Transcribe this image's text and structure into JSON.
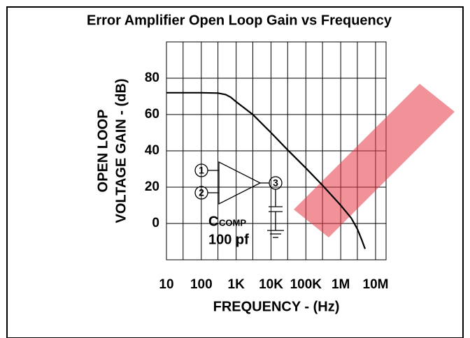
{
  "chart_data": {
    "type": "line",
    "title": "Error Amplifier Open Loop Gain vs Frequency",
    "y_label_lines": [
      "OPEN LOOP",
      "VOLTAGE GAIN  -  (dB)"
    ],
    "x_label": "FREQUENCY  -  (Hz)",
    "x_scale": "log",
    "xlim": [
      10,
      20000000
    ],
    "ylim": [
      -20,
      100
    ],
    "xticks": [
      10,
      100,
      {
        "value": 1000,
        "label": "1K"
      },
      {
        "value": 10000,
        "label": "10K"
      },
      {
        "value": 100000,
        "label": "100K"
      },
      {
        "value": 1000000,
        "label": "1M"
      },
      {
        "value": 10000000,
        "label": "10M"
      }
    ],
    "x_minor_grid": [
      30,
      300,
      3000,
      30000,
      300000,
      3000000
    ],
    "yticks": [
      0,
      20,
      40,
      60,
      80
    ],
    "y_extra_grid": [
      -20,
      100
    ],
    "grid": true,
    "series": [
      {
        "color": "#000000",
        "x": [
          10,
          100,
          300,
          500,
          700,
          1000,
          3000,
          10000,
          30000,
          100000,
          300000,
          1000000,
          2000000,
          3000000,
          4000000,
          5000000
        ],
        "values": [
          72,
          72,
          71.8,
          71,
          69.5,
          67,
          60,
          50,
          40.5,
          30.5,
          21,
          10,
          3,
          -3,
          -9,
          -14
        ]
      }
    ],
    "annotations": {
      "pin1": "1",
      "pin2": "2",
      "pin3": "3",
      "cap_letter": "C",
      "cap_sub": "COMP",
      "cap_value": "100  pf"
    }
  }
}
